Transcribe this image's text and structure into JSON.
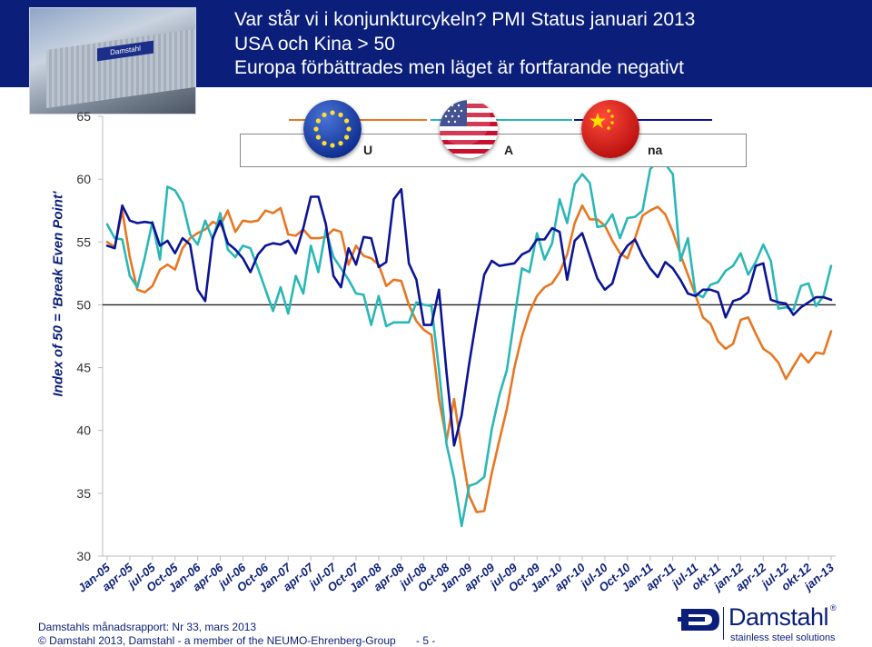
{
  "slide": {
    "title_line1": "Var står vi i konjunkturcykeln?  PMI Status januari 2013",
    "title_line2": "USA och Kina > 50",
    "title_line3": "Europa förbättrades men läget är fortfarande negativt",
    "header_color": "#0b1f7a"
  },
  "footer": {
    "report": "Damstahls månadsrapport: Nr 33, mars 2013",
    "copyright": "© Damstahl 2013, Damstahl - a member of the NEUMO-Ehrenberg-Group",
    "page": "- 5 -"
  },
  "logo": {
    "name": "Damstahl",
    "registered": "®",
    "tagline": "stainless steel solutions",
    "photo_sign": "Damstahl"
  },
  "legend": {
    "items": [
      {
        "label": "U",
        "color": "#e87722",
        "icon": "eu-flag-icon"
      },
      {
        "label": "A",
        "color": "#2ab7b7",
        "icon": "us-flag-icon"
      },
      {
        "label": "na",
        "color": "#0b1496",
        "icon": "china-flag-icon"
      }
    ]
  },
  "chart_data": {
    "type": "line",
    "ylabel": "Index of 50 = 'Break Even Point'",
    "xlabel": "",
    "ylim": [
      30,
      65
    ],
    "yticks": [
      "30",
      "35",
      "40",
      "45",
      "50",
      "55",
      "60",
      "65"
    ],
    "reference_line": 50,
    "x_tick_labels": [
      "Jan-05",
      "apr-05",
      "jul-05",
      "Oct-05",
      "Jan-06",
      "apr-06",
      "jul-06",
      "Oct-06",
      "Jan-07",
      "apr-07",
      "jul-07",
      "Oct-07",
      "Jan-08",
      "apr-08",
      "jul-08",
      "Oct-08",
      "Jan-09",
      "apr-09",
      "jul-09",
      "Oct-09",
      "Jan-10",
      "apr-10",
      "jul-10",
      "Oct-10",
      "Jan-11",
      "apr-11",
      "jul-11",
      "okt-11",
      "jan-12",
      "apr-12",
      "jul-12",
      "okt-12",
      "jan-13"
    ],
    "x": [
      "Jan-05",
      "Feb-05",
      "Mar-05",
      "apr-05",
      "May-05",
      "Jun-05",
      "jul-05",
      "Aug-05",
      "Sep-05",
      "Oct-05",
      "Nov-05",
      "Dec-05",
      "Jan-06",
      "Feb-06",
      "Mar-06",
      "apr-06",
      "May-06",
      "Jun-06",
      "jul-06",
      "Aug-06",
      "Sep-06",
      "Oct-06",
      "Nov-06",
      "Dec-06",
      "Jan-07",
      "Feb-07",
      "Mar-07",
      "apr-07",
      "May-07",
      "Jun-07",
      "jul-07",
      "Aug-07",
      "Sep-07",
      "Oct-07",
      "Nov-07",
      "Dec-07",
      "Jan-08",
      "Feb-08",
      "Mar-08",
      "apr-08",
      "May-08",
      "Jun-08",
      "jul-08",
      "Aug-08",
      "Sep-08",
      "Oct-08",
      "Nov-08",
      "Dec-08",
      "Jan-09",
      "Feb-09",
      "Mar-09",
      "apr-09",
      "May-09",
      "Jun-09",
      "jul-09",
      "Aug-09",
      "Sep-09",
      "Oct-09",
      "Nov-09",
      "Dec-09",
      "Jan-10",
      "Feb-10",
      "Mar-10",
      "apr-10",
      "May-10",
      "Jun-10",
      "jul-10",
      "Aug-10",
      "Sep-10",
      "Oct-10",
      "Nov-10",
      "Dec-10",
      "Jan-11",
      "Feb-11",
      "Mar-11",
      "apr-11",
      "May-11",
      "Jun-11",
      "jul-11",
      "Aug-11",
      "Sep-11",
      "okt-11",
      "Nov-11",
      "Dec-11",
      "jan-12",
      "Feb-12",
      "Mar-12",
      "apr-12",
      "May-12",
      "Jun-12",
      "jul-12",
      "Aug-12",
      "Sep-12",
      "okt-12",
      "Nov-12",
      "Dec-12",
      "jan-13"
    ],
    "series": [
      {
        "name": "EU",
        "color": "#e87722",
        "values": [
          55.0,
          54.6,
          57.5,
          53.8,
          51.2,
          51.0,
          51.5,
          52.8,
          53.2,
          52.8,
          54.5,
          55.3,
          55.7,
          56.0,
          56.6,
          56.3,
          57.5,
          55.8,
          56.7,
          56.6,
          56.7,
          57.5,
          57.3,
          57.7,
          55.6,
          55.5,
          56.0,
          55.3,
          55.3,
          55.4,
          56.0,
          55.8,
          53.2,
          54.7,
          53.9,
          53.7,
          53.2,
          51.5,
          52.0,
          51.9,
          50.0,
          48.7,
          48.0,
          47.6,
          42.5,
          39.2,
          42.5,
          38.4,
          34.8,
          33.5,
          33.6,
          36.6,
          39.2,
          41.7,
          45.0,
          47.5,
          49.4,
          50.7,
          51.4,
          51.7,
          52.6,
          54.0,
          56.5,
          57.9,
          56.8,
          56.8,
          56.3,
          55.1,
          54.1,
          53.7,
          55.3,
          57.1,
          57.5,
          57.8,
          57.2,
          55.8,
          54.0,
          52.4,
          50.8,
          49.0,
          48.5,
          47.1,
          46.5,
          46.9,
          48.8,
          49.0,
          47.7,
          46.5,
          46.1,
          45.4,
          44.1,
          45.1,
          46.1,
          45.4,
          46.2,
          46.1,
          47.9
        ]
      },
      {
        "name": "USA",
        "color": "#2ab7b7",
        "values": [
          56.4,
          55.3,
          55.2,
          52.3,
          51.4,
          53.8,
          56.6,
          53.6,
          59.4,
          59.1,
          58.1,
          55.6,
          54.8,
          56.7,
          55.2,
          57.3,
          54.4,
          53.8,
          54.7,
          54.5,
          52.9,
          51.2,
          49.5,
          51.4,
          49.3,
          52.3,
          50.9,
          54.7,
          52.6,
          56.0,
          53.8,
          52.9,
          52.0,
          50.9,
          50.8,
          48.4,
          50.7,
          48.3,
          48.6,
          48.6,
          48.6,
          50.2,
          50.0,
          49.9,
          44.8,
          38.9,
          36.2,
          32.4,
          35.6,
          35.8,
          36.3,
          40.1,
          42.8,
          44.8,
          48.9,
          52.9,
          52.6,
          55.7,
          53.6,
          54.9,
          58.4,
          56.5,
          59.6,
          60.4,
          59.7,
          56.2,
          56.3,
          57.2,
          55.3,
          56.9,
          57.0,
          57.5,
          60.8,
          61.4,
          61.2,
          60.4,
          53.5,
          55.3,
          50.9,
          50.6,
          51.6,
          51.8,
          52.7,
          53.1,
          54.1,
          52.4,
          53.4,
          54.8,
          53.5,
          49.7,
          49.8,
          49.6,
          51.5,
          51.7,
          49.9,
          50.7,
          53.1
        ]
      },
      {
        "name": "China",
        "color": "#0b1496",
        "values": [
          54.7,
          54.5,
          57.9,
          56.7,
          56.5,
          56.6,
          56.5,
          54.7,
          55.1,
          54.1,
          55.3,
          54.8,
          51.2,
          50.3,
          55.3,
          56.7,
          54.9,
          54.4,
          53.7,
          52.6,
          54.0,
          54.7,
          54.9,
          54.8,
          55.1,
          54.1,
          56.1,
          58.6,
          58.6,
          56.4,
          52.3,
          51.4,
          54.5,
          53.2,
          55.4,
          55.3,
          53.0,
          53.4,
          58.4,
          59.2,
          53.3,
          52.0,
          48.4,
          48.4,
          51.2,
          44.6,
          38.8,
          41.2,
          45.3,
          49.0,
          52.4,
          53.5,
          53.1,
          53.2,
          53.3,
          54.0,
          54.3,
          55.2,
          55.2,
          56.1,
          55.8,
          52.0,
          55.1,
          55.7,
          53.9,
          52.1,
          51.2,
          51.7,
          53.8,
          54.7,
          55.2,
          53.9,
          52.9,
          52.2,
          53.4,
          52.9,
          52.0,
          50.9,
          50.7,
          51.2,
          51.2,
          51.0,
          49.0,
          50.3,
          50.5,
          51.0,
          53.1,
          53.3,
          50.4,
          50.2,
          50.1,
          49.2,
          49.8,
          50.2,
          50.6,
          50.6,
          50.4
        ]
      }
    ],
    "legend_position": "top",
    "grid": false
  }
}
